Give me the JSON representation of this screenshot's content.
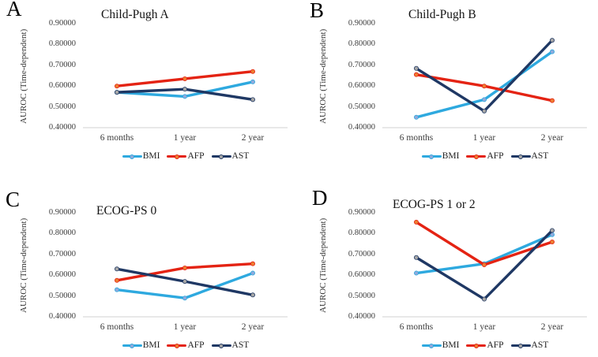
{
  "figure": {
    "y_axis_label": "AUROC (Time-dependent)",
    "ytick_labels": [
      "0.90000",
      "0.80000",
      "0.70000",
      "0.60000",
      "0.50000",
      "0.40000"
    ],
    "x_labels": [
      "6 months",
      "1 year",
      "2 year"
    ],
    "legend_labels": [
      "BMI",
      "AFP",
      "AST"
    ],
    "colors": {
      "bmi_line": "#2EA9DF",
      "bmi_marker": "#8FAADC",
      "afp_line": "#E42313",
      "afp_marker": "#ED7D31",
      "ast_line": "#1F3864",
      "ast_marker": "#A6A6A6",
      "axis_line": "#D9D9D9",
      "tick_text": "#3D3D3D"
    }
  },
  "chart_data": [
    {
      "type": "line",
      "panel_label": "A",
      "title": "Child-Pugh A",
      "x": [
        "6 months",
        "1 year",
        "2 year"
      ],
      "ylabel": "AUROC (Time-dependent)",
      "ylim": [
        0.4,
        0.9
      ],
      "yticks": [
        0.9,
        0.8,
        0.7,
        0.6,
        0.5,
        0.4
      ],
      "grid": false,
      "legend_position": "bottom",
      "series": [
        {
          "name": "BMI",
          "values": [
            0.57,
            0.55,
            0.62
          ]
        },
        {
          "name": "AFP",
          "values": [
            0.6,
            0.635,
            0.67
          ]
        },
        {
          "name": "AST",
          "values": [
            0.57,
            0.585,
            0.535
          ]
        }
      ]
    },
    {
      "type": "line",
      "panel_label": "B",
      "title": "Child-Pugh B",
      "x": [
        "6 months",
        "1 year",
        "2 year"
      ],
      "ylabel": "AUROC (Time-dependent)",
      "ylim": [
        0.4,
        0.9
      ],
      "yticks": [
        0.9,
        0.8,
        0.7,
        0.6,
        0.5,
        0.4
      ],
      "grid": false,
      "legend_position": "bottom",
      "series": [
        {
          "name": "BMI",
          "values": [
            0.45,
            0.535,
            0.765
          ]
        },
        {
          "name": "AFP",
          "values": [
            0.655,
            0.6,
            0.53
          ]
        },
        {
          "name": "AST",
          "values": [
            0.685,
            0.48,
            0.82
          ]
        }
      ]
    },
    {
      "type": "line",
      "panel_label": "C",
      "title": "ECOG-PS 0",
      "x": [
        "6 months",
        "1 year",
        "2 year"
      ],
      "ylabel": "AUROC (Time-dependent)",
      "ylim": [
        0.4,
        0.9
      ],
      "yticks": [
        0.9,
        0.8,
        0.7,
        0.6,
        0.5,
        0.4
      ],
      "grid": false,
      "legend_position": "bottom",
      "series": [
        {
          "name": "BMI",
          "values": [
            0.53,
            0.49,
            0.61
          ]
        },
        {
          "name": "AFP",
          "values": [
            0.575,
            0.635,
            0.655
          ]
        },
        {
          "name": "AST",
          "values": [
            0.63,
            0.57,
            0.505
          ]
        }
      ]
    },
    {
      "type": "line",
      "panel_label": "D",
      "title": "ECOG-PS 1 or 2",
      "x": [
        "6 months",
        "1 year",
        "2 year"
      ],
      "ylabel": "AUROC (Time-dependent)",
      "ylim": [
        0.4,
        0.9
      ],
      "yticks": [
        0.9,
        0.8,
        0.7,
        0.6,
        0.5,
        0.4
      ],
      "grid": false,
      "legend_position": "bottom",
      "series": [
        {
          "name": "BMI",
          "values": [
            0.61,
            0.655,
            0.795
          ]
        },
        {
          "name": "AFP",
          "values": [
            0.855,
            0.65,
            0.76
          ]
        },
        {
          "name": "AST",
          "values": [
            0.685,
            0.485,
            0.815
          ]
        }
      ]
    }
  ]
}
